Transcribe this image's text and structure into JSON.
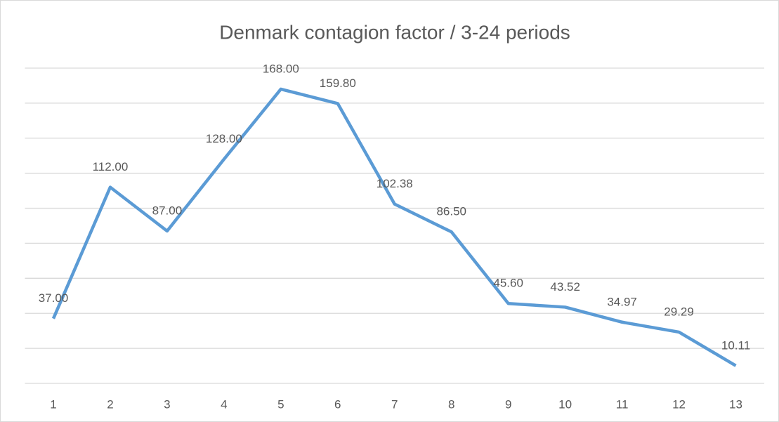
{
  "chart_data": {
    "type": "line",
    "title": "Denmark contagion factor / 3-24 periods",
    "categories": [
      "1",
      "2",
      "3",
      "4",
      "5",
      "6",
      "7",
      "8",
      "9",
      "10",
      "11",
      "12",
      "13"
    ],
    "values": [
      37,
      112,
      87,
      128,
      168,
      159.8,
      102.38,
      86.5,
      45.6,
      43.52,
      34.97,
      29.29,
      10.11
    ],
    "value_labels": [
      "37.00",
      "112.00",
      "87.00",
      "128.00",
      "168.00",
      "159.80",
      "102.38",
      "86.50",
      "45.60",
      "43.52",
      "34.97",
      "29.29",
      "10.11"
    ],
    "color": "#5b9bd5",
    "ylim": [
      0,
      180
    ],
    "yticks": [
      0,
      20,
      40,
      60,
      80,
      100,
      120,
      140,
      160,
      180
    ],
    "grid": true
  }
}
